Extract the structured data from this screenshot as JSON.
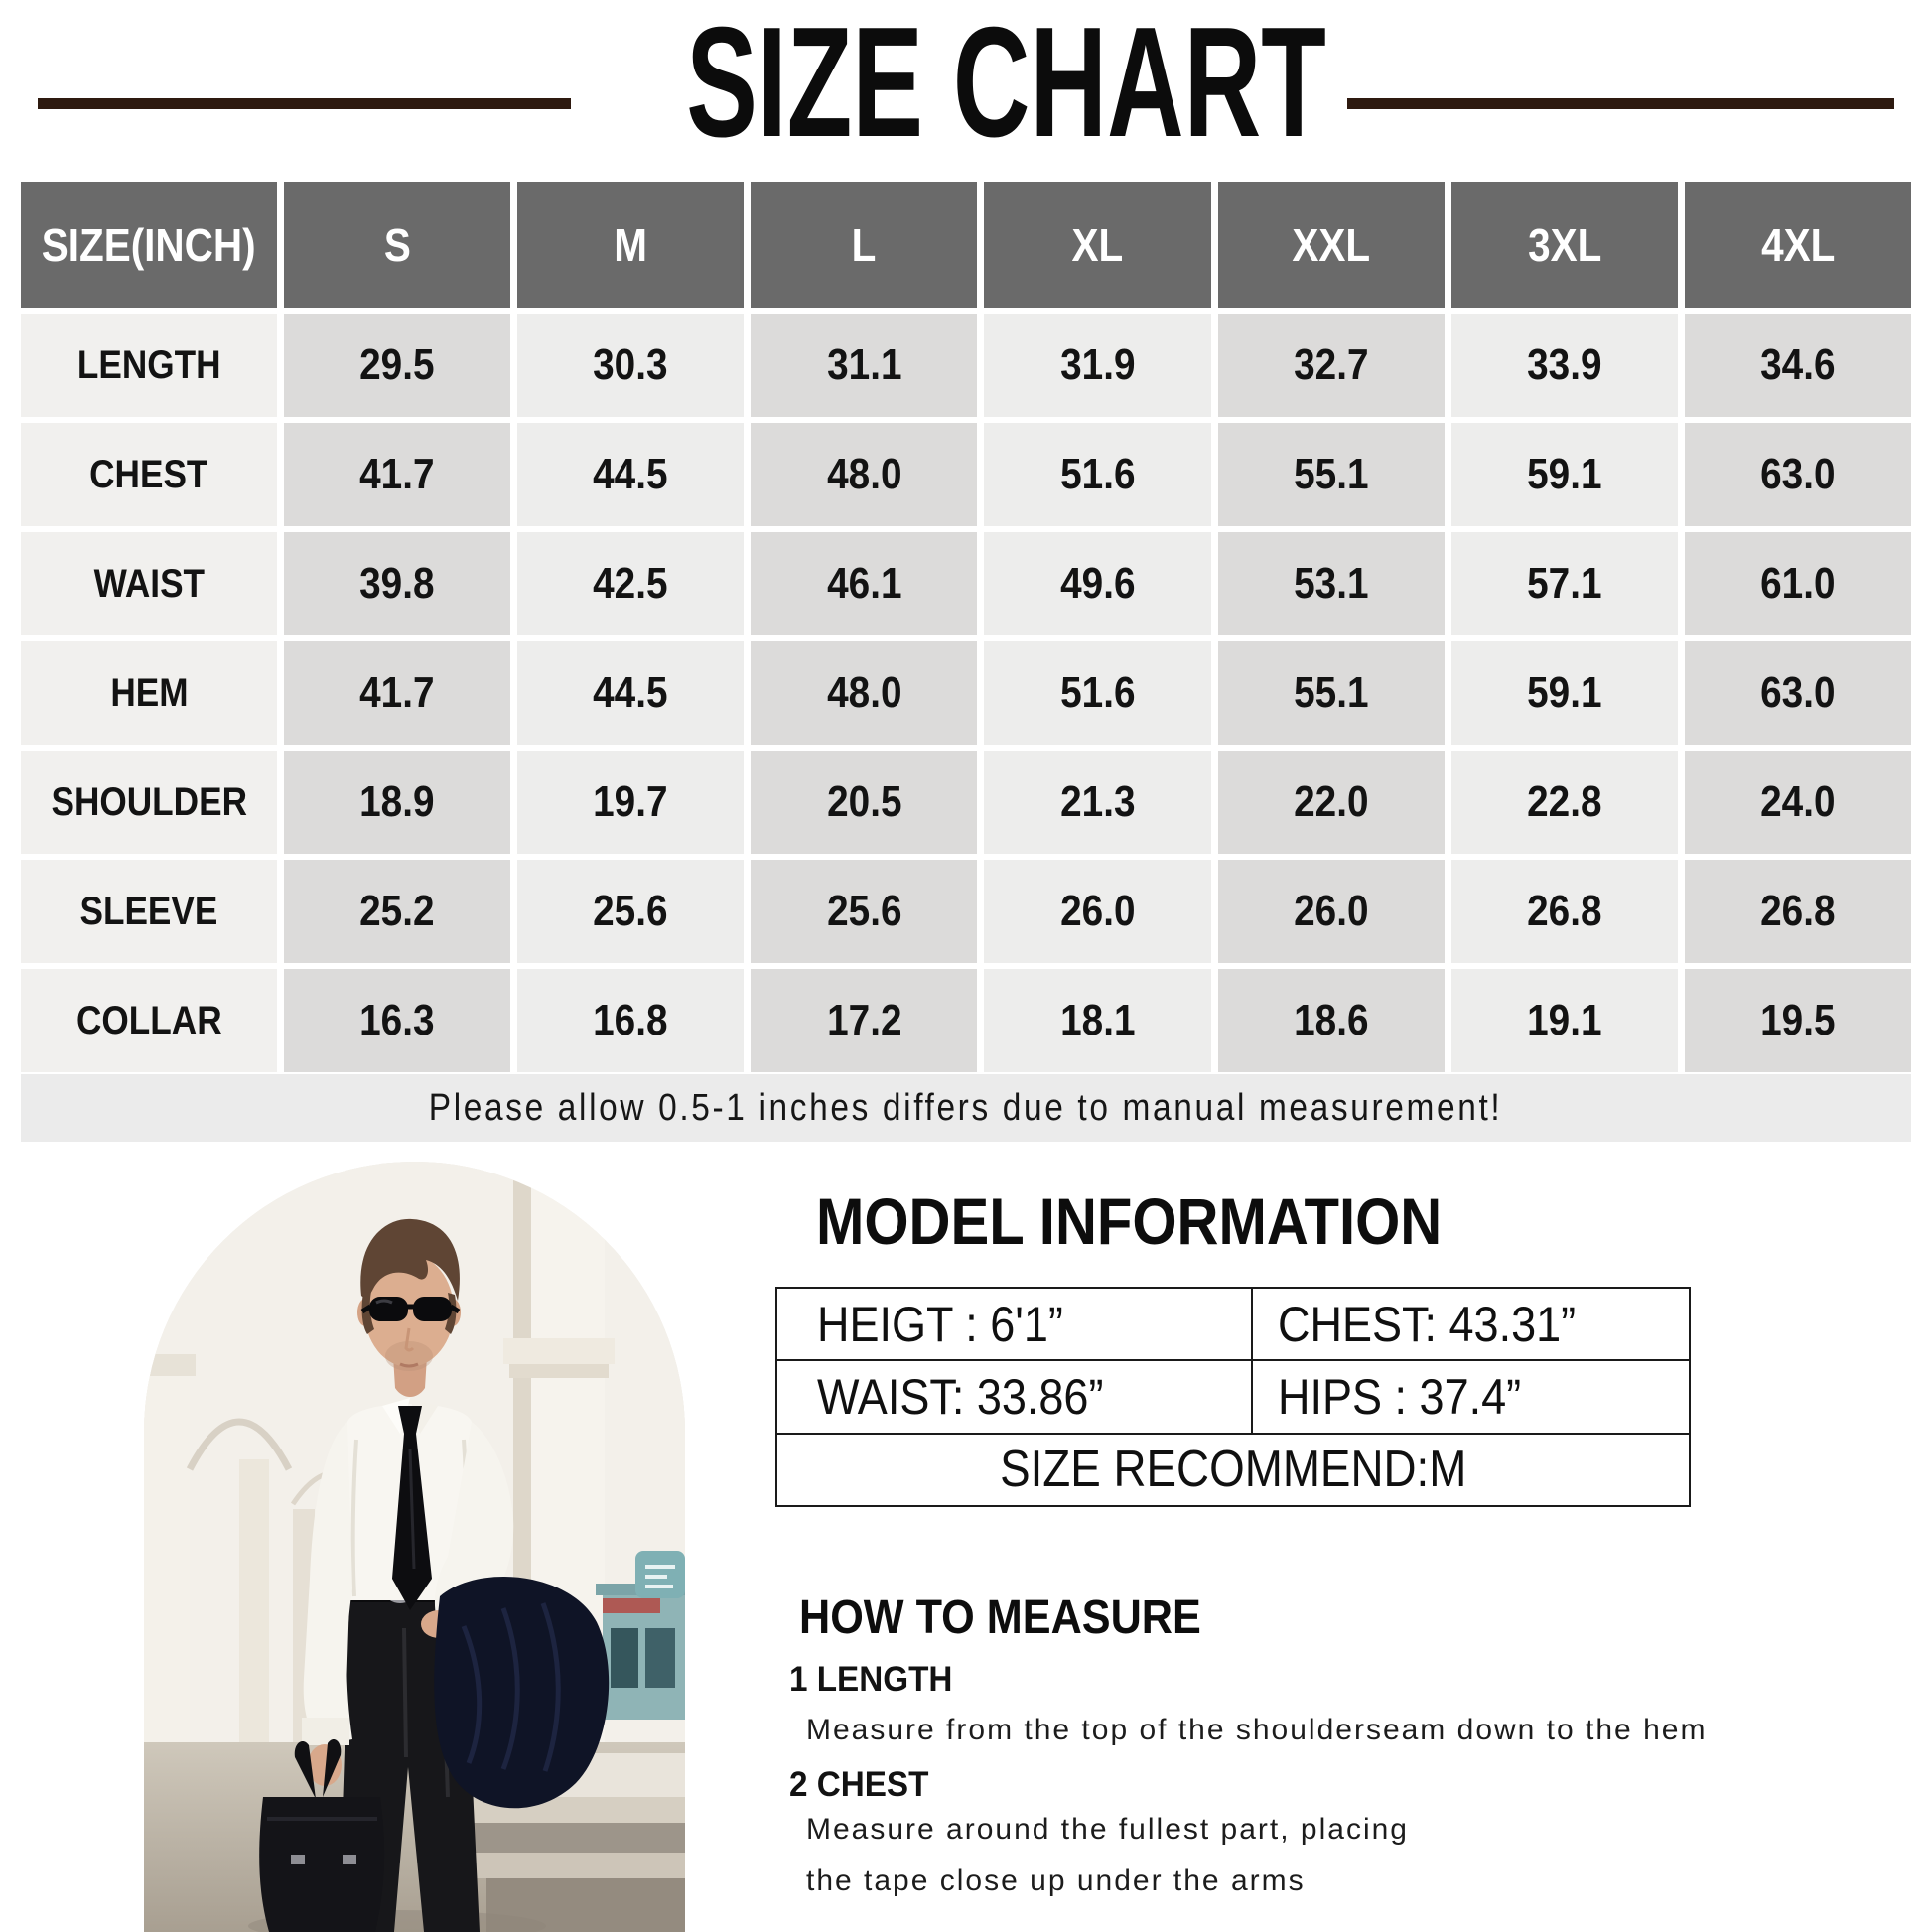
{
  "title": "SIZE CHART",
  "colors": {
    "title_rule": "#2e1a10",
    "header_bg": "#6a6a6a",
    "cell_dark": "#dcdbda",
    "cell_light": "#ededec",
    "note_bg": "#ebebeb"
  },
  "size_table": {
    "unit_header": "SIZE(INCH)",
    "columns": [
      "S",
      "M",
      "L",
      "XL",
      "XXL",
      "3XL",
      "4XL"
    ],
    "rows": [
      {
        "label": "LENGTH",
        "values": [
          "29.5",
          "30.3",
          "31.1",
          "31.9",
          "32.7",
          "33.9",
          "34.6"
        ]
      },
      {
        "label": "CHEST",
        "values": [
          "41.7",
          "44.5",
          "48.0",
          "51.6",
          "55.1",
          "59.1",
          "63.0"
        ]
      },
      {
        "label": "WAIST",
        "values": [
          "39.8",
          "42.5",
          "46.1",
          "49.6",
          "53.1",
          "57.1",
          "61.0"
        ]
      },
      {
        "label": "HEM",
        "values": [
          "41.7",
          "44.5",
          "48.0",
          "51.6",
          "55.1",
          "59.1",
          "63.0"
        ]
      },
      {
        "label": "SHOULDER",
        "values": [
          "18.9",
          "19.7",
          "20.5",
          "21.3",
          "22.0",
          "22.8",
          "24.0"
        ]
      },
      {
        "label": "SLEEVE",
        "values": [
          "25.2",
          "25.6",
          "25.6",
          "26.0",
          "26.0",
          "26.8",
          "26.8"
        ]
      },
      {
        "label": "COLLAR",
        "values": [
          "16.3",
          "16.8",
          "17.2",
          "18.1",
          "18.6",
          "19.1",
          "19.5"
        ]
      }
    ]
  },
  "note": "Please allow 0.5-1 inches differs due to manual measurement!",
  "model_info": {
    "title": "MODEL INFORMATION",
    "cells": [
      [
        "HEIGT : 6'1”",
        "CHEST: 43.31”"
      ],
      [
        "WAIST: 33.86”",
        "HIPS  : 37.4”"
      ]
    ],
    "recommend": "SIZE RECOMMEND:M"
  },
  "how_to_measure": {
    "title": "HOW TO MEASURE",
    "steps": [
      {
        "label": "1 LENGTH",
        "lines": [
          "Measure from the top of the shoulderseam down to the hem"
        ]
      },
      {
        "label": "2 CHEST",
        "lines": [
          "Measure around the fullest part, placing",
          "the tape close up under the arms"
        ]
      }
    ]
  }
}
